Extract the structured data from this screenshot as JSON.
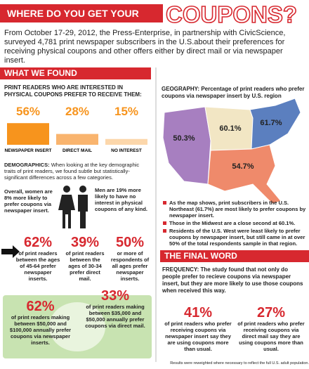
{
  "header": {
    "title_prefix": "WHERE DO YOU GET YOUR",
    "title_main": "COUPONS?"
  },
  "intro": "From October 17-29, 2012, the Press-Enterprise, in partnership with CivicScience, surveyed 4,781 print newspaper subscribers in the U.S.about their preferences for receiving physical coupons and other offers either by direct mail or via newspaper insert.",
  "found": {
    "heading": "WHAT WE FOUND",
    "question": "PRINT READERS WHO ARE INTERESTED IN PHYSICAL COUPONS PREFER TO RECEIVE THEM:",
    "bars": [
      {
        "label": "NEWSPAPER INSERT",
        "value": 56,
        "value_label": "56%",
        "color": "#f7941d"
      },
      {
        "label": "DIRECT MAIL",
        "value": 28,
        "value_label": "28%",
        "color": "#f9b46e"
      },
      {
        "label": "NO INTEREST",
        "value": 15,
        "value_label": "15%",
        "color": "#fcd7ab"
      }
    ]
  },
  "demographics": {
    "lead": "DEMOGRAPHICS:",
    "text": "When looking at the key demographic traits of print readers, we found subtle but statistically-significant differences across a few categories.",
    "women": "Overall, women are 8% more likely to prefer coupons via newspaper insert.",
    "men": "Men are 19% more likely to have no interest in physical coupons of any kind.",
    "stats": [
      {
        "figure": "62%",
        "text": "of print readers between the ages of 45-64 prefer newspaper inserts."
      },
      {
        "figure": "39%",
        "text": "of print readers between the ages of 30-34 prefer direct mail."
      },
      {
        "figure": "50%",
        "text": "or more of respondents of all ages prefer newspaper inserts."
      }
    ]
  },
  "income": [
    {
      "figure": "62%",
      "text": "of print readers making between $50,000 and $100,000 annually prefer coupons via newspaper inserts."
    },
    {
      "figure": "33%",
      "text": "of print readers making between $35,000 and $50,000 annually prefer coupons via direct mail."
    }
  ],
  "geography": {
    "lead": "GEOGRAPHY:",
    "heading": "Percentage of print readers who prefer coupons via newspaper insert by U.S. region",
    "regions": [
      {
        "label": "50.3%",
        "color": "#a77fc0"
      },
      {
        "label": "60.1%",
        "color": "#f2e6c4"
      },
      {
        "label": "61.7%",
        "color": "#5b7fbf"
      },
      {
        "label": "54.7%",
        "color": "#ef8a6b"
      }
    ],
    "bullets": [
      "As the map shows, print subscribers in the U.S. Northeast (61.7%) are most likely to prefer coupons by newspaper insert.",
      "Those in the Midwest are a close second at 60.1%.",
      "Residents of the U.S. West were least likely to prefer coupons by newspaper insert, but still came in at over 50% of the total respondents sample in that region."
    ]
  },
  "final_word": {
    "heading": "THE FINAL WORD",
    "lead": "FREQUENCY:",
    "text": "The study found that not only do people prefer to recieve coupons via newspaper insert, but they are more likely to use those coupons when received this way.",
    "stats": [
      {
        "figure": "41%",
        "text": "of print readers who prefer receiving coupons via newspaper insert say they are using coupons more than usual."
      },
      {
        "figure": "27%",
        "text": "of print readers who prefer receiving coupons via direct mail say they are using coupons more than usual."
      }
    ]
  },
  "footnote": "Results were reweighted where necessary to reflect the full U.S. adult population."
}
